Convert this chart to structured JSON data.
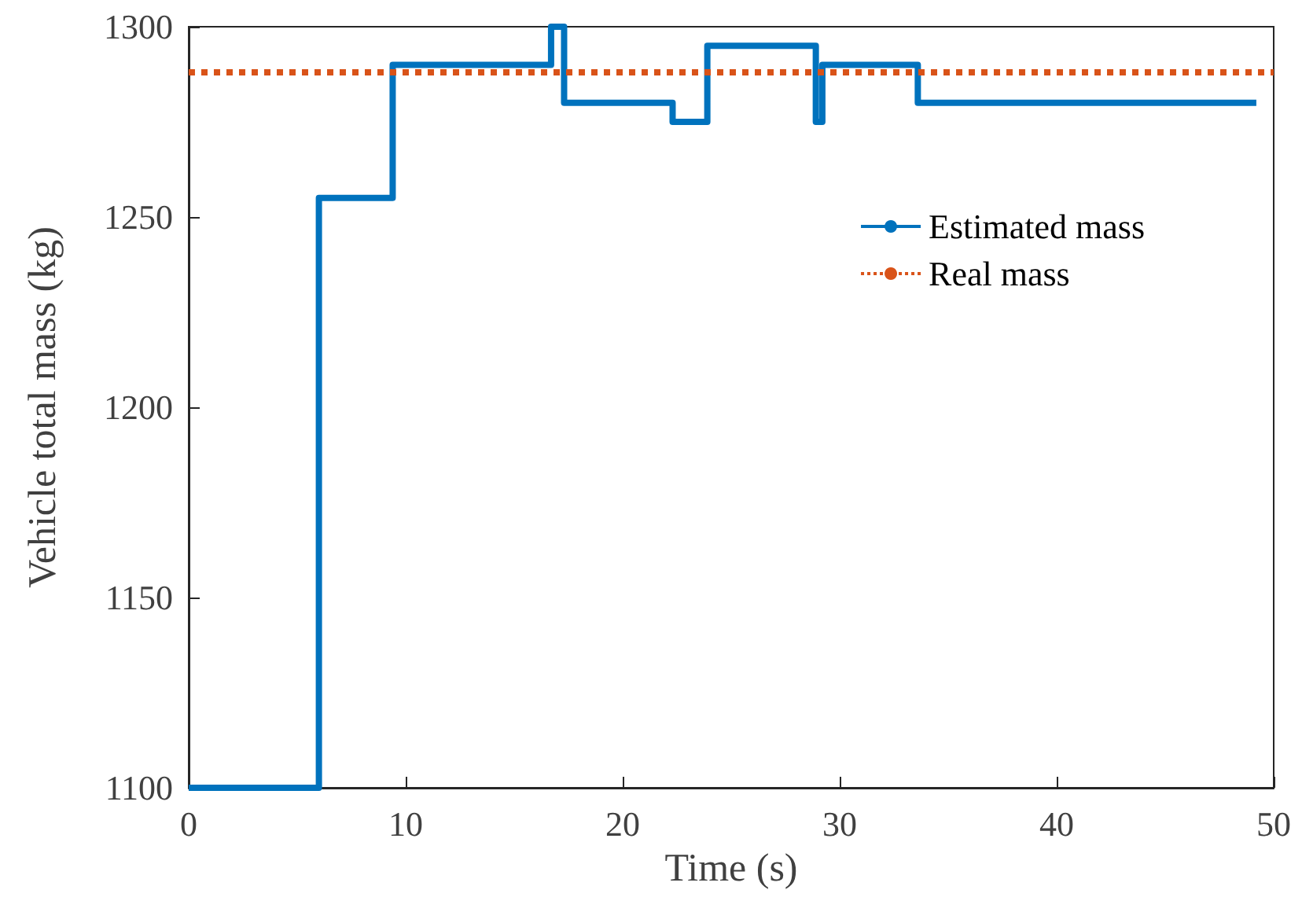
{
  "chart_data": {
    "type": "step",
    "xlabel": "Time (s)",
    "ylabel": "Vehicle total mass (kg)",
    "xlim": [
      0,
      50
    ],
    "xticks": [
      0,
      10,
      20,
      30,
      40,
      50
    ],
    "ylim": [
      1100,
      1300
    ],
    "yticks": [
      1100,
      1150,
      1200,
      1250,
      1300
    ],
    "grid": false,
    "legend": "top right",
    "marker": "none",
    "series": [
      {
        "name": "Estimated mass",
        "color": "#0072bd",
        "line_style": "solid",
        "x": [
          0,
          6,
          9.4,
          16.7,
          17.3,
          22.3,
          23.9,
          28.9,
          29.2,
          33.6,
          49.2
        ],
        "values": [
          1100,
          1255,
          1290,
          1300,
          1280,
          1275,
          1295,
          1275,
          1290,
          1280,
          1280
        ]
      },
      {
        "name": "Real mass",
        "type": "line",
        "color": "#d95319",
        "line_style": "dotted",
        "x": [
          0,
          50
        ],
        "values": [
          1288,
          1288
        ]
      }
    ]
  }
}
